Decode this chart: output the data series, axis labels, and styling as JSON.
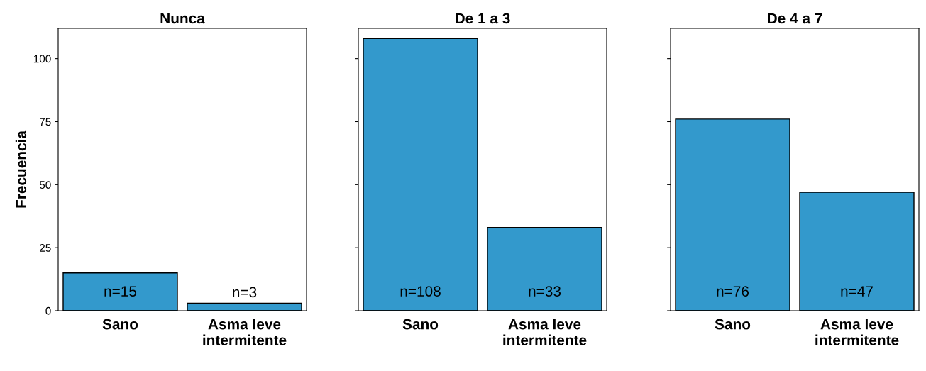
{
  "chart_data": [
    {
      "type": "bar",
      "title": "Nunca",
      "ylabel": "Frecuencia",
      "categories": [
        "Sano",
        "Asma leve\nintermitente"
      ],
      "values": [
        15,
        3
      ],
      "color": "#3399cc",
      "value_labels": [
        "n=15",
        "n=3"
      ],
      "ylim": [
        0,
        112
      ],
      "yticks": [
        0,
        25,
        50,
        75,
        100
      ],
      "grid": false
    },
    {
      "type": "bar",
      "title": "De 1 a 3",
      "categories": [
        "Sano",
        "Asma leve\nintermitente"
      ],
      "values": [
        108,
        33
      ],
      "color": "#3399cc",
      "value_labels": [
        "n=108",
        "n=33"
      ],
      "ylim": [
        0,
        112
      ],
      "yticks": [
        0,
        25,
        50,
        75,
        100
      ],
      "tick_labels": "x",
      "grid": false
    },
    {
      "type": "bar",
      "title": "De 4 a 7",
      "categories": [
        "Sano",
        "Asma leve\nintermitente"
      ],
      "values": [
        76,
        47
      ],
      "color": "#3399cc",
      "value_labels": [
        "n=76",
        "n=47"
      ],
      "ylim": [
        0,
        112
      ],
      "yticks": [
        0,
        25,
        50,
        75,
        100
      ],
      "tick_labels": "x",
      "grid": false
    }
  ]
}
